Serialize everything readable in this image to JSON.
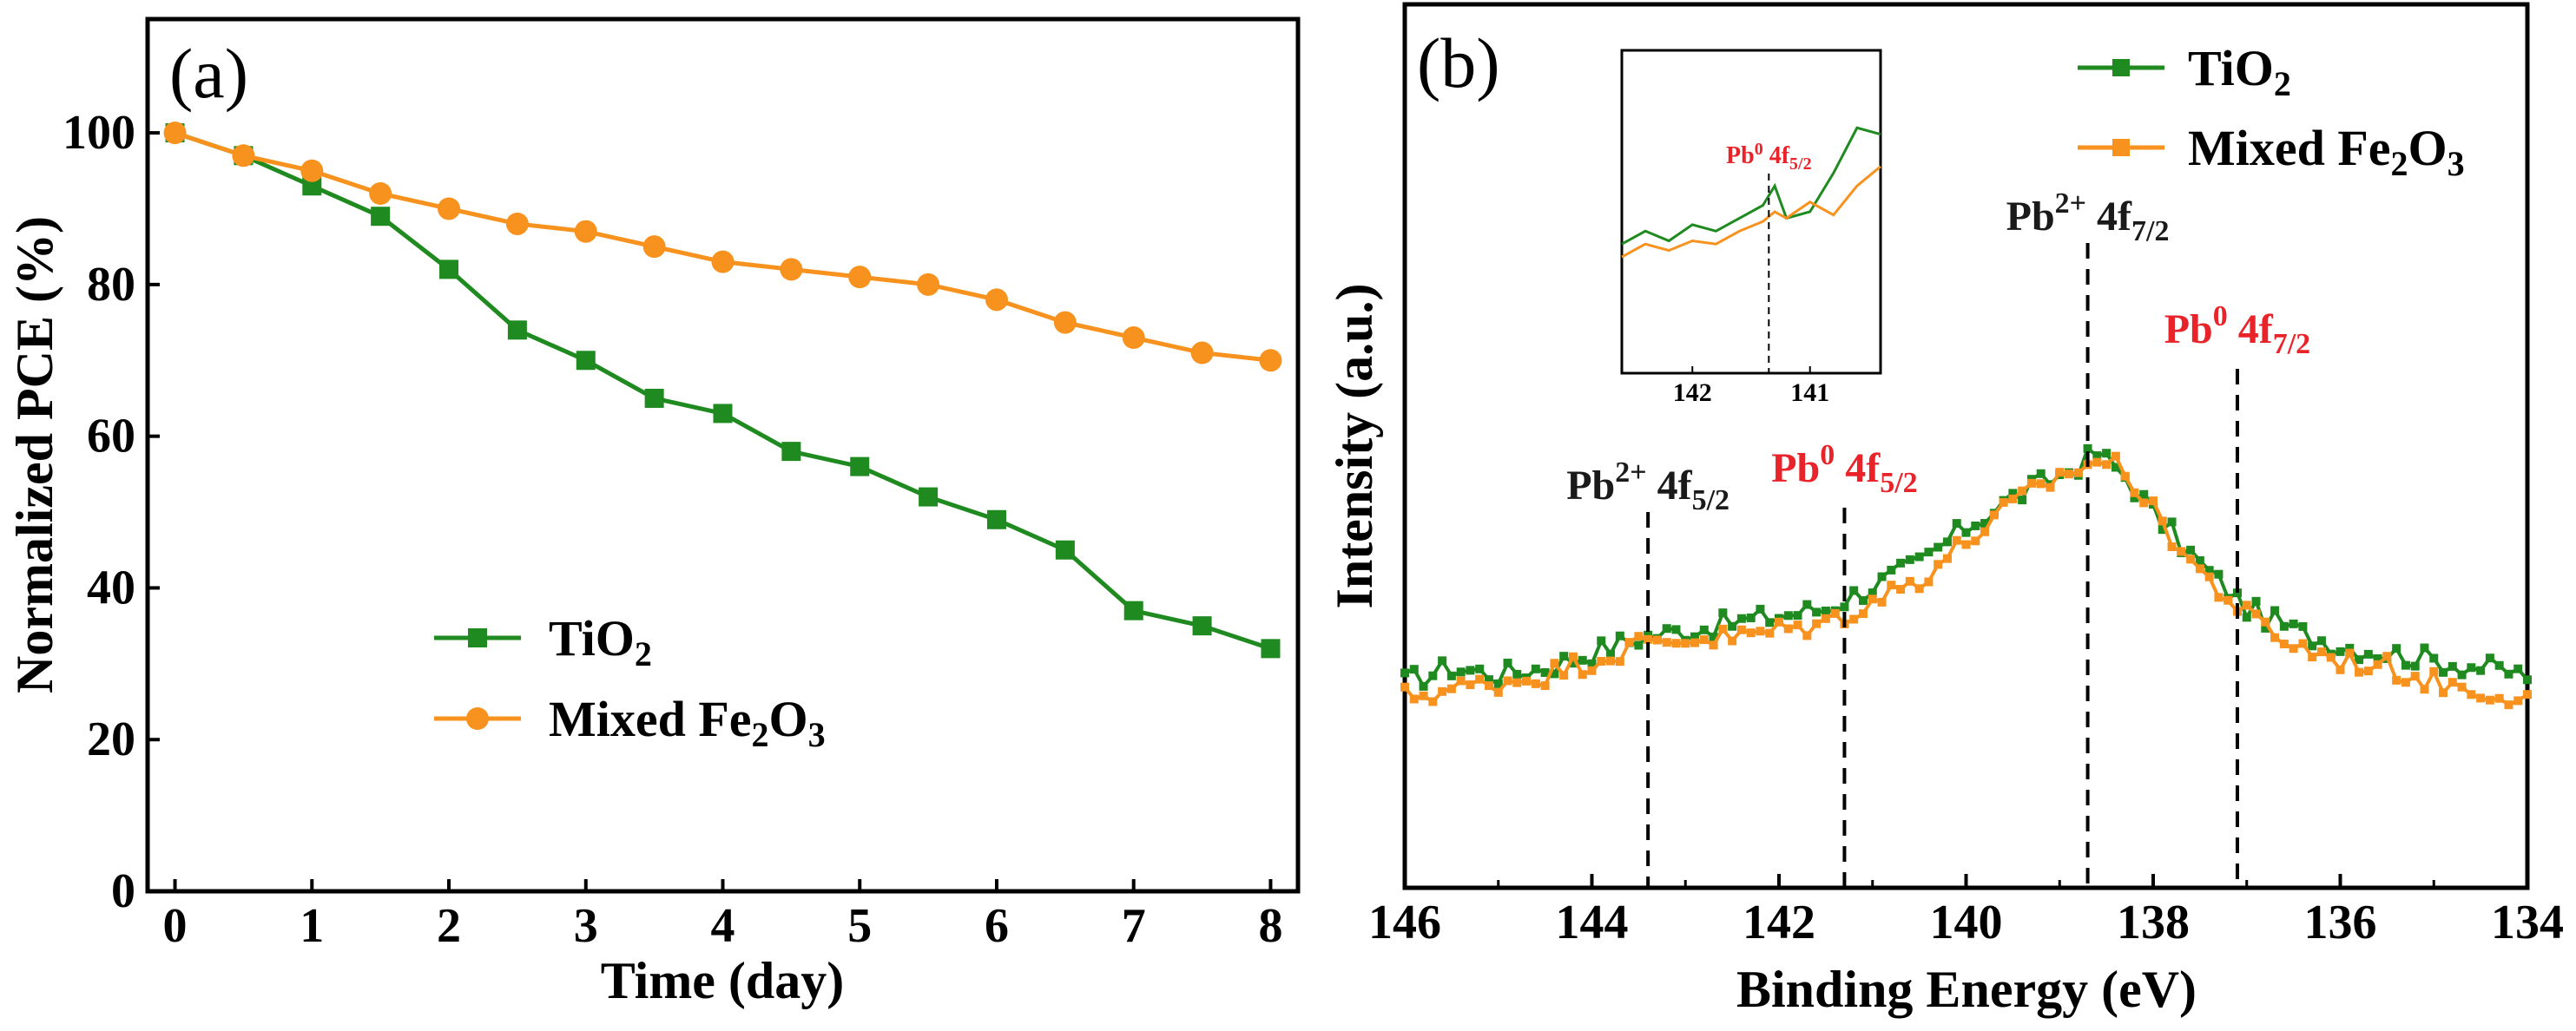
{
  "chart_data": [
    {
      "type": "line",
      "panel_label": "(a)",
      "xlabel": "Time (day)",
      "ylabel": "Normalized PCE (%)",
      "xlim": [
        -0.2,
        8.2
      ],
      "ylim": [
        0,
        115
      ],
      "xticks": [
        0,
        1,
        2,
        3,
        4,
        5,
        6,
        7,
        8
      ],
      "yticks": [
        0,
        20,
        40,
        60,
        80,
        100
      ],
      "legend_position": "bottom-left",
      "series": [
        {
          "name": "TiO2",
          "label_main": "TiO",
          "label_sub": "2",
          "color": "#1f8a1f",
          "marker": "square",
          "x": [
            0,
            0.5,
            1,
            1.5,
            2,
            2.5,
            3,
            3.5,
            4,
            4.5,
            5,
            5.5,
            6,
            6.5,
            7,
            7.5,
            8
          ],
          "y": [
            100,
            97,
            93,
            89,
            82,
            74,
            70,
            65,
            63,
            58,
            56,
            52,
            49,
            45,
            37,
            35,
            32
          ]
        },
        {
          "name": "Mixed Fe2O3",
          "label_main": "Mixed Fe",
          "label_sub1": "2",
          "label_mid": "O",
          "label_sub2": "3",
          "color": "#f7921e",
          "marker": "circle",
          "x": [
            0,
            0.5,
            1,
            1.5,
            2,
            2.5,
            3,
            3.5,
            4,
            4.5,
            5,
            5.5,
            6,
            6.5,
            7,
            7.5,
            8
          ],
          "y": [
            100,
            97,
            95,
            92,
            90,
            88,
            87,
            85,
            83,
            82,
            81,
            80,
            78,
            75,
            73,
            71,
            70
          ]
        }
      ]
    },
    {
      "type": "line",
      "panel_label": "(b)",
      "xlabel": "Binding Energy (eV)",
      "ylabel": "Intensity (a.u.)",
      "xlim": [
        146,
        134
      ],
      "ylim": [
        0,
        100
      ],
      "xticks": [
        146,
        144,
        142,
        140,
        138,
        136,
        134
      ],
      "legend_position": "top-right",
      "series": [
        {
          "name": "TiO2",
          "label_main": "TiO",
          "label_sub": "2",
          "color": "#1f8a1f",
          "marker": "square",
          "x": [
            146,
            145.5,
            145,
            144.5,
            144,
            143.5,
            143,
            142.5,
            142,
            141.5,
            141,
            140.5,
            140,
            139.5,
            139,
            138.6,
            138.3,
            138,
            137.5,
            137,
            136.5,
            136,
            135.5,
            135,
            134.5,
            134
          ],
          "y": [
            24,
            26,
            25,
            26,
            28,
            30,
            31,
            32,
            33,
            34,
            37,
            40,
            45,
            49,
            52,
            55,
            52,
            47,
            40,
            34,
            31,
            29,
            28,
            27,
            26,
            25
          ]
        },
        {
          "name": "Mixed Fe2O3",
          "label_main": "Mixed Fe",
          "label_sub1": "2",
          "label_mid": "O",
          "label_sub2": "3",
          "color": "#f7921e",
          "marker": "square",
          "x": [
            146,
            145.5,
            145,
            144.5,
            144,
            143.5,
            143,
            142.5,
            142,
            141.5,
            141,
            140.5,
            140,
            139.5,
            139,
            138.6,
            138.3,
            138,
            137.5,
            137,
            136.5,
            136,
            135.5,
            135,
            134.5,
            134
          ],
          "y": [
            22,
            23,
            24,
            25,
            27,
            29,
            30,
            30,
            31,
            32,
            35,
            38,
            43,
            48,
            52,
            54,
            53,
            47,
            39,
            33,
            29,
            27,
            26,
            24,
            23,
            22
          ]
        }
      ],
      "annotations": [
        {
          "text": "Pb",
          "sup": "2+",
          "orb": " 4f",
          "sub": "5/2",
          "x": 143.4,
          "color": "#1a1a1a"
        },
        {
          "text": "Pb",
          "sup": "0",
          "orb": " 4f",
          "sub": "5/2",
          "x": 141.3,
          "color": "#e8232a"
        },
        {
          "text": "Pb",
          "sup": "2+",
          "orb": " 4f",
          "sub": "7/2",
          "x": 138.7,
          "color": "#1a1a1a"
        },
        {
          "text": "Pb",
          "sup": "0",
          "orb": " 4f",
          "sub": "7/2",
          "x": 137.1,
          "color": "#e8232a"
        }
      ],
      "inset": {
        "xlim": [
          142.6,
          140.4
        ],
        "xticks": [
          142,
          141
        ],
        "annotation": {
          "text": "Pb",
          "sup": "0",
          "orb": " 4f",
          "sub": "5/2",
          "x": 141.35
        },
        "series": [
          {
            "name": "TiO2",
            "color": "#1f8a1f",
            "x": [
              142.6,
              142.4,
              142.2,
              142.0,
              141.8,
              141.6,
              141.4,
              141.3,
              141.2,
              141.0,
              140.8,
              140.6,
              140.4
            ],
            "y": [
              40,
              44,
              41,
              46,
              44,
              48,
              52,
              58,
              48,
              50,
              62,
              76,
              74
            ]
          },
          {
            "name": "Mixed Fe2O3",
            "color": "#f7921e",
            "x": [
              142.6,
              142.4,
              142.2,
              142.0,
              141.8,
              141.6,
              141.4,
              141.3,
              141.2,
              141.0,
              140.8,
              140.6,
              140.4
            ],
            "y": [
              36,
              40,
              38,
              41,
              40,
              44,
              47,
              50,
              48,
              53,
              49,
              58,
              64
            ]
          }
        ]
      }
    }
  ]
}
